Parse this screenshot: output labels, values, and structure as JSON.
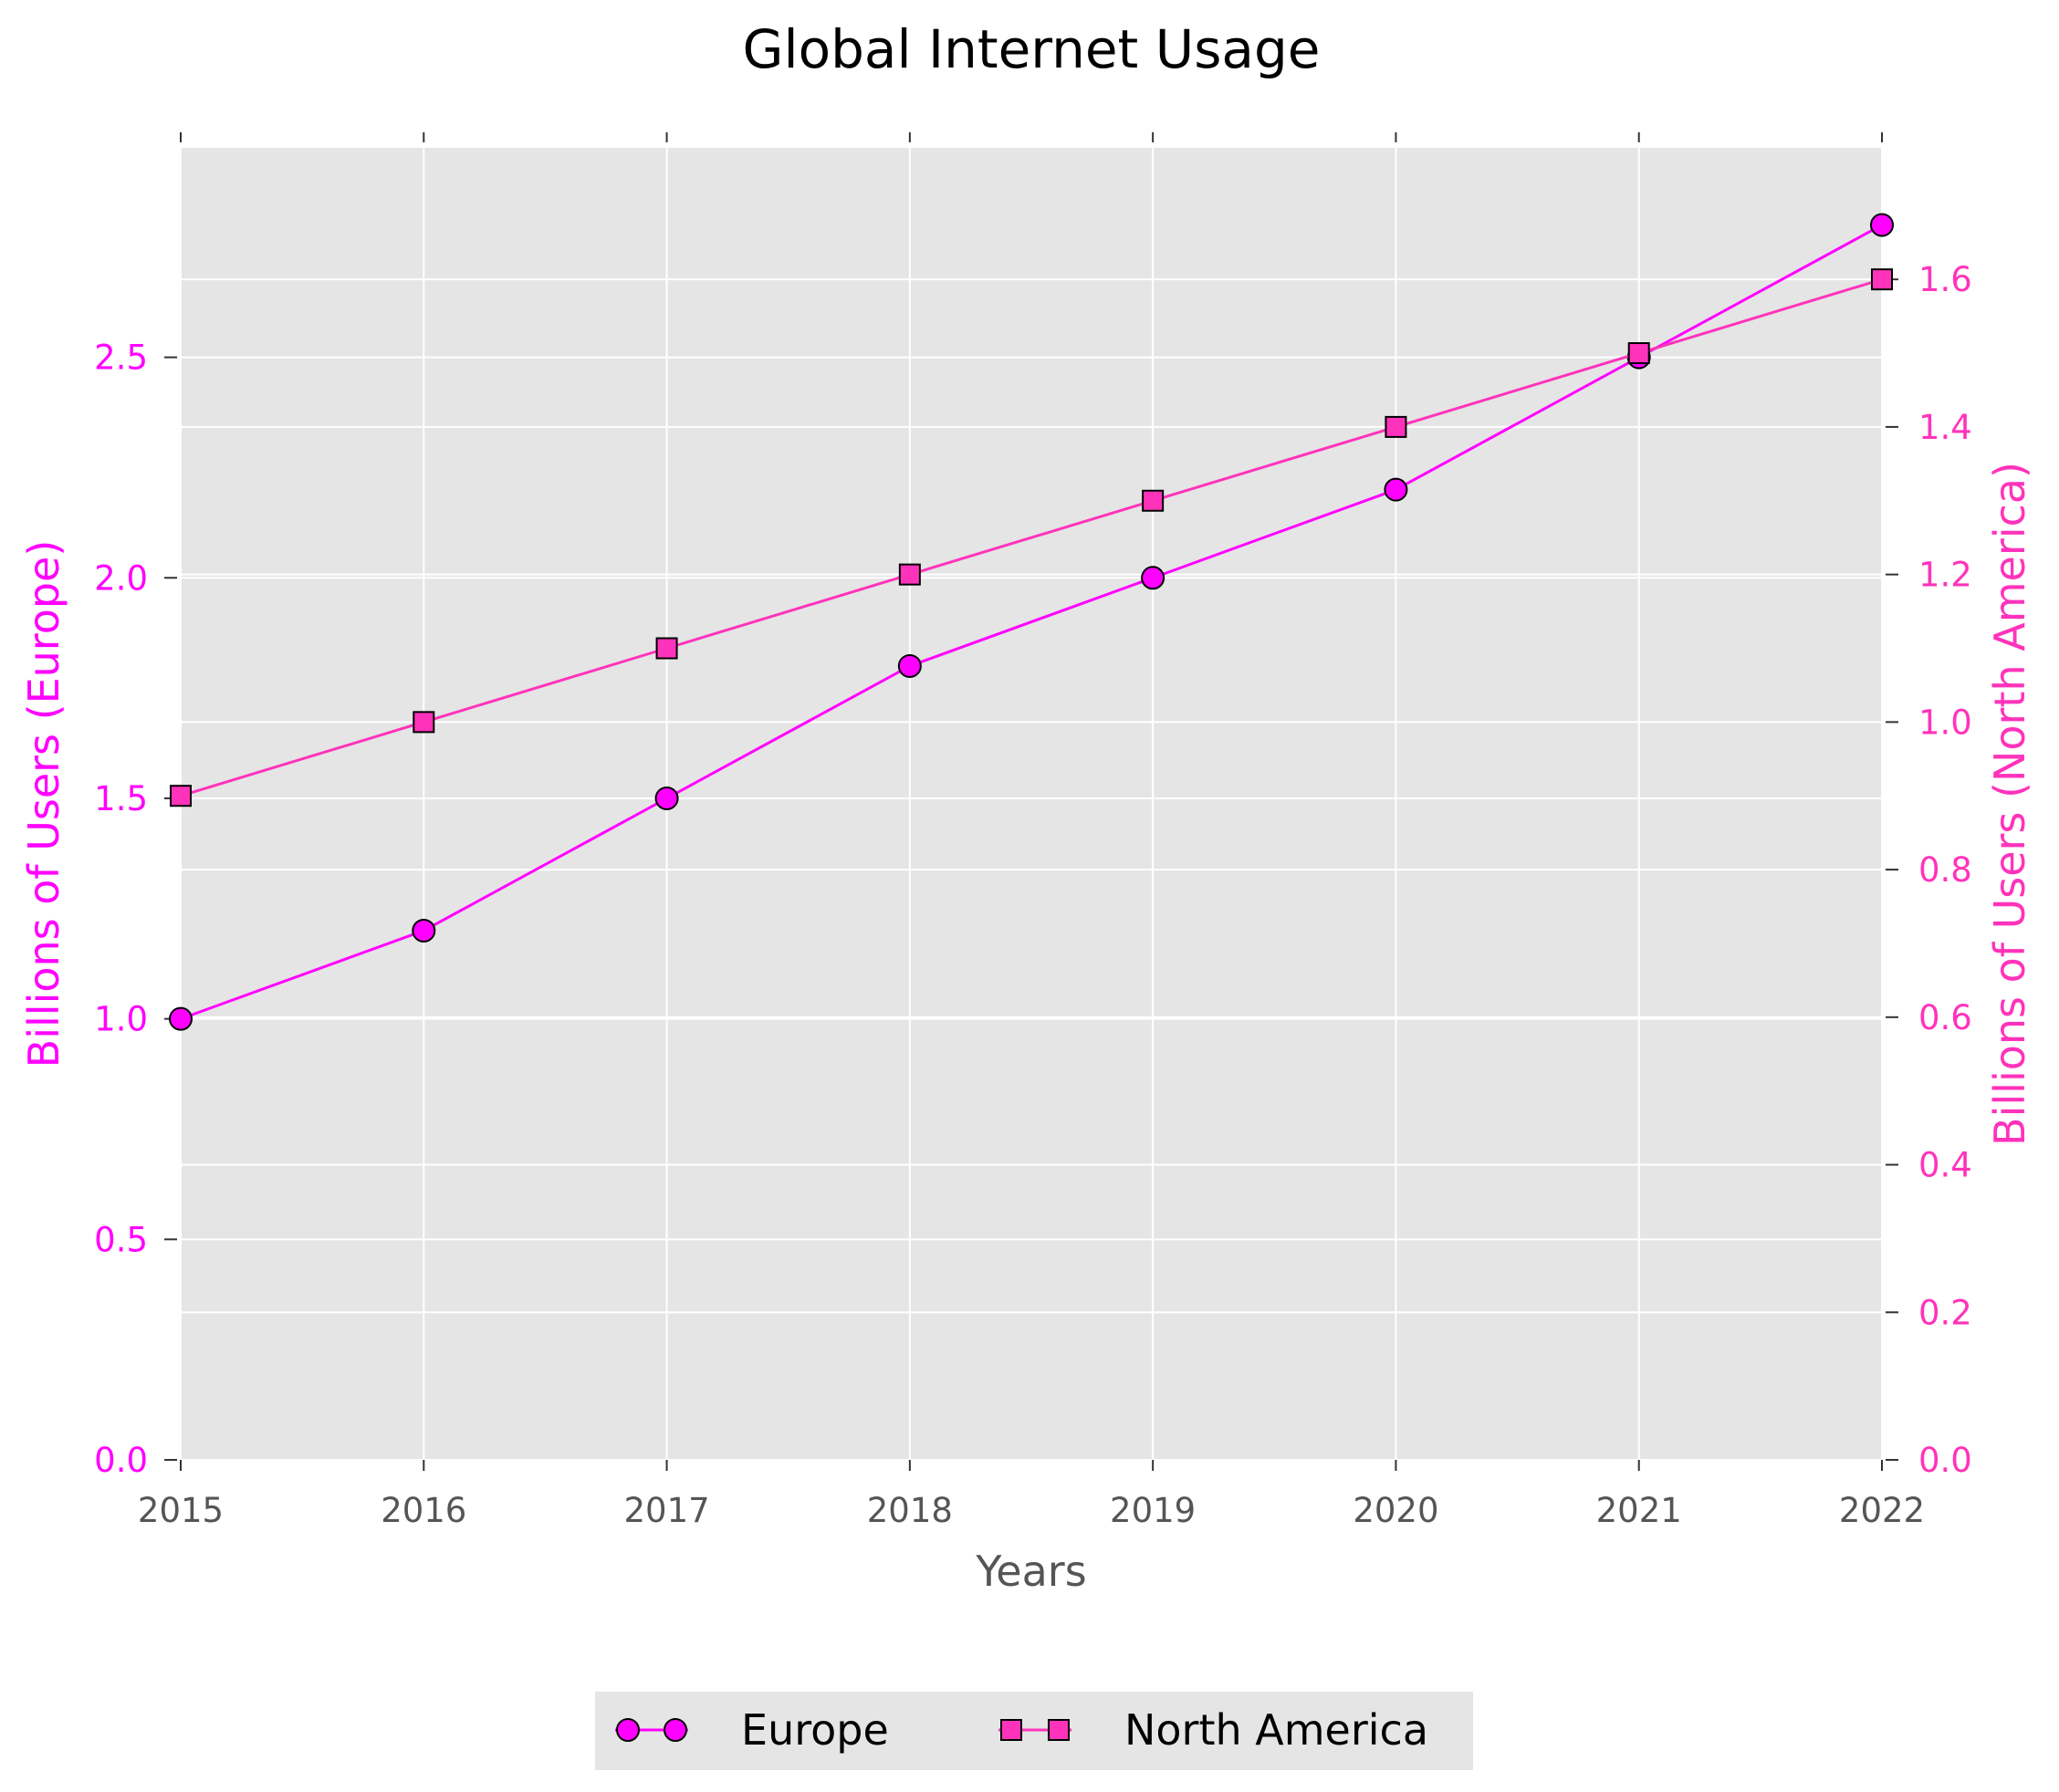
{
  "chart_data": {
    "type": "line",
    "title": "Global Internet Usage",
    "xlabel": "Years",
    "ylabel_left": "Billions of Users (Europe)",
    "ylabel_right": "Billions of Users (North America)",
    "x": [
      2015,
      2016,
      2017,
      2018,
      2019,
      2020,
      2021,
      2022
    ],
    "x_tick_labels": [
      "2015",
      "2016",
      "2017",
      "2018",
      "2019",
      "2020",
      "2021",
      "2022"
    ],
    "xlim": [
      2015,
      2022
    ],
    "ylim_left": [
      0,
      2.975
    ],
    "ylim_right": [
      0,
      1.7783
    ],
    "y_ticks_left": [
      0.0,
      0.5,
      1.0,
      1.5,
      2.0,
      2.5
    ],
    "y_tick_labels_left": [
      "0.0",
      "0.5",
      "1.0",
      "1.5",
      "2.0",
      "2.5"
    ],
    "y_ticks_right": [
      0.0,
      0.2,
      0.4,
      0.6,
      0.8,
      1.0,
      1.2,
      1.4,
      1.6
    ],
    "y_tick_labels_right": [
      "0.0",
      "0.2",
      "0.4",
      "0.6",
      "0.8",
      "1.0",
      "1.2",
      "1.4",
      "1.6"
    ],
    "grid": true,
    "legend_position": "bottom-center",
    "series": [
      {
        "name": "Europe",
        "axis": "left",
        "marker": "circle",
        "color": "#ff00ff",
        "values": [
          1.0,
          1.2,
          1.5,
          1.8,
          2.0,
          2.2,
          2.5,
          2.8
        ]
      },
      {
        "name": "North America",
        "axis": "right",
        "marker": "square",
        "color": "#ff33bb",
        "values": [
          0.9,
          1.0,
          1.1,
          1.2,
          1.3,
          1.4,
          1.5,
          1.6
        ]
      }
    ],
    "colors": {
      "plot_background": "#e5e5e5",
      "grid": "#ffffff",
      "left_axis": "#ff00ff",
      "right_axis": "#ff33bb",
      "x_axis_text": "#555555"
    }
  }
}
